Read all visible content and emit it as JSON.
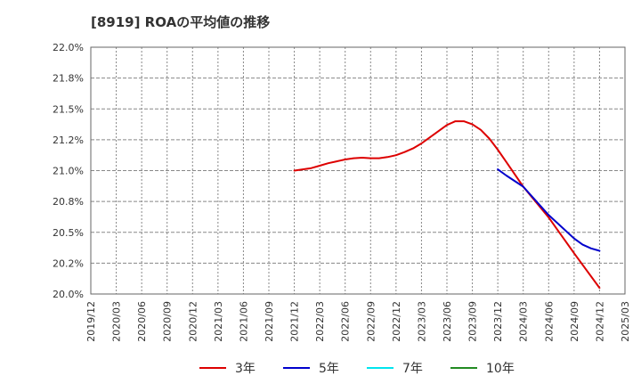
{
  "chart_data": {
    "type": "line",
    "title": "[8919]  ROAの平均値の推移",
    "xlabel": "",
    "ylabel": "",
    "ylim": [
      20.0,
      22.0
    ],
    "yticks": [
      "22.0%",
      "21.8%",
      "21.5%",
      "21.2%",
      "21.0%",
      "20.8%",
      "20.5%",
      "20.2%",
      "20.0%"
    ],
    "xticks": [
      "2019/12",
      "2020/03",
      "2020/06",
      "2020/09",
      "2020/12",
      "2021/03",
      "2021/06",
      "2021/09",
      "2021/12",
      "2022/03",
      "2022/06",
      "2022/09",
      "2022/12",
      "2023/03",
      "2023/06",
      "2023/09",
      "2023/12",
      "2024/03",
      "2024/06",
      "2024/09",
      "2024/12",
      "2025/03"
    ],
    "grid": true,
    "legend_position": "bottom",
    "series": [
      {
        "name": "3年",
        "color": "#dd0000",
        "points": [
          [
            "2021/12",
            21.0
          ],
          [
            "2022/01",
            21.01
          ],
          [
            "2022/02",
            21.02
          ],
          [
            "2022/03",
            21.04
          ],
          [
            "2022/04",
            21.06
          ],
          [
            "2022/05",
            21.075
          ],
          [
            "2022/06",
            21.09
          ],
          [
            "2022/07",
            21.1
          ],
          [
            "2022/08",
            21.105
          ],
          [
            "2022/09",
            21.1
          ],
          [
            "2022/10",
            21.1
          ],
          [
            "2022/11",
            21.11
          ],
          [
            "2022/12",
            21.125
          ],
          [
            "2023/01",
            21.15
          ],
          [
            "2023/02",
            21.18
          ],
          [
            "2023/03",
            21.22
          ],
          [
            "2023/04",
            21.27
          ],
          [
            "2023/05",
            21.32
          ],
          [
            "2023/06",
            21.37
          ],
          [
            "2023/07",
            21.4
          ],
          [
            "2023/08",
            21.4
          ],
          [
            "2023/09",
            21.375
          ],
          [
            "2023/10",
            21.33
          ],
          [
            "2023/11",
            21.26
          ],
          [
            "2023/12",
            21.17
          ],
          [
            "2024/01",
            21.07
          ],
          [
            "2024/03",
            20.87
          ],
          [
            "2024/06",
            20.62
          ],
          [
            "2024/09",
            20.33
          ],
          [
            "2024/12",
            20.05
          ]
        ]
      },
      {
        "name": "5年",
        "color": "#0000cc",
        "points": [
          [
            "2023/12",
            21.01
          ],
          [
            "2024/01",
            20.96
          ],
          [
            "2024/03",
            20.87
          ],
          [
            "2024/06",
            20.64
          ],
          [
            "2024/09",
            20.45
          ],
          [
            "2024/10",
            20.4
          ],
          [
            "2024/11",
            20.37
          ],
          [
            "2024/12",
            20.35
          ]
        ]
      },
      {
        "name": "7年",
        "color": "#00e5ee",
        "points": []
      },
      {
        "name": "10年",
        "color": "#228b22",
        "points": []
      }
    ]
  }
}
